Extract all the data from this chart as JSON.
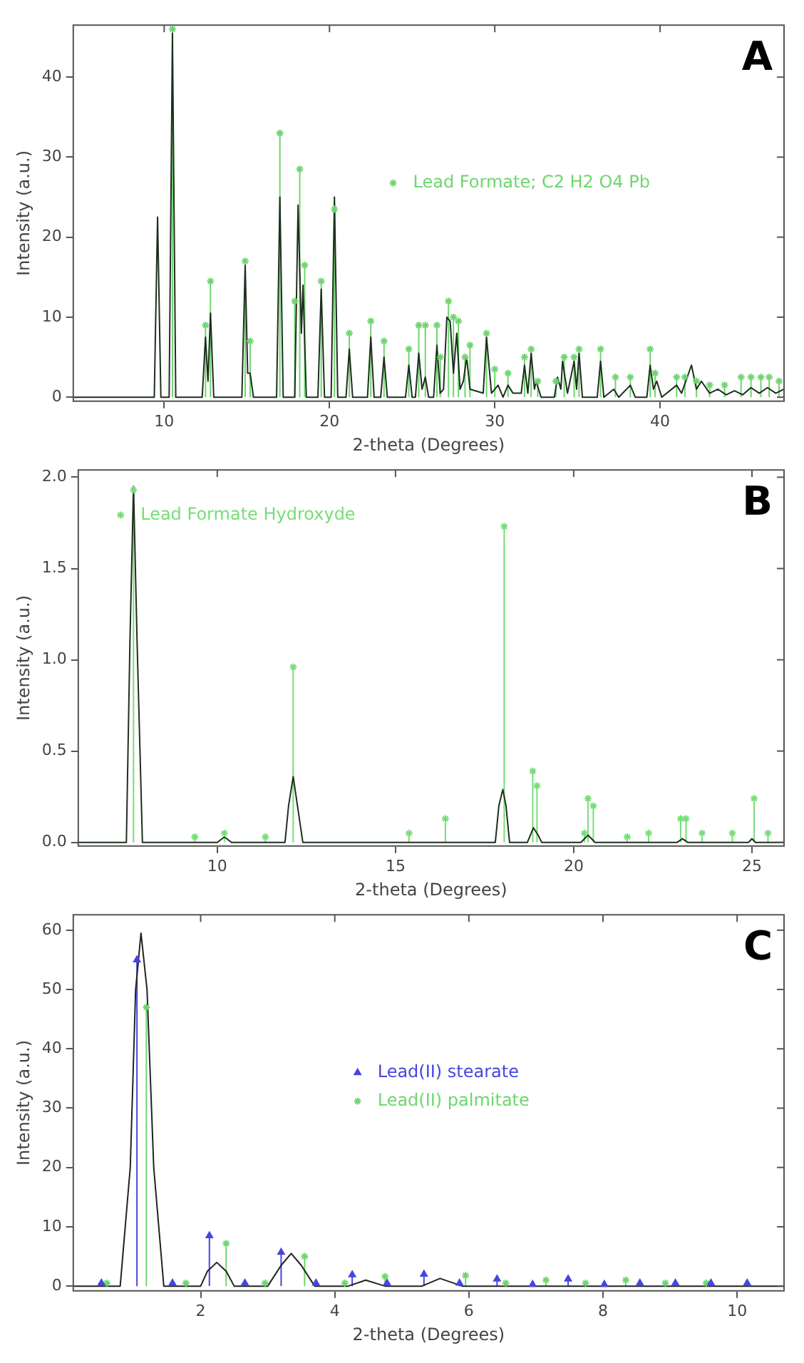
{
  "chart_data": [
    {
      "type": "line",
      "annotations": [
        "A"
      ],
      "xlabel": "2-theta (Degrees)",
      "ylabel": "Intensity (a.u.)",
      "xlim": [
        4.5,
        47.5
      ],
      "ylim": [
        -0.5,
        46.5
      ],
      "xticks": [
        10,
        20,
        30,
        40
      ],
      "yticks": [
        0,
        10,
        20,
        30,
        40
      ],
      "grid": false,
      "legend": "right",
      "series": [
        {
          "type": "line",
          "color": "#1e2e1e",
          "x": [
            4.5,
            9.4,
            9.6,
            9.8,
            10.3,
            10.5,
            10.7,
            12.3,
            12.5,
            12.65,
            12.8,
            13.0,
            14.7,
            14.9,
            15.05,
            15.2,
            15.4,
            16.8,
            17.0,
            17.2,
            17.9,
            18.1,
            18.3,
            18.4,
            18.6,
            19.3,
            19.5,
            19.7,
            20.1,
            20.3,
            20.5,
            21.0,
            21.2,
            21.4,
            22.3,
            22.5,
            22.7,
            23.1,
            23.3,
            23.5,
            24.6,
            24.8,
            25.0,
            25.2,
            25.4,
            25.6,
            25.8,
            26.0,
            26.3,
            26.5,
            26.7,
            26.9,
            27.1,
            27.3,
            27.5,
            27.7,
            27.9,
            28.1,
            28.3,
            28.5,
            29.3,
            29.5,
            29.8,
            30.2,
            30.5,
            30.8,
            31.1,
            31.6,
            31.8,
            32.0,
            32.2,
            32.4,
            32.5,
            32.8,
            33.6,
            33.8,
            34.0,
            34.1,
            34.4,
            34.8,
            34.95,
            35.1,
            35.3,
            36.2,
            36.4,
            36.6,
            37.2,
            37.5,
            38.2,
            38.5,
            39.2,
            39.4,
            39.6,
            39.8,
            40.1,
            41.0,
            41.3,
            41.9,
            42.2,
            42.5,
            43.0,
            43.5,
            44.0,
            44.5,
            45.0,
            45.5,
            46.0,
            46.5,
            47.0,
            47.5
          ],
          "values": [
            0,
            0,
            22.5,
            0,
            0,
            45.5,
            0,
            0,
            7.5,
            2,
            10.5,
            0,
            0,
            16.5,
            3,
            3,
            0,
            0,
            25,
            0,
            0,
            24,
            8,
            14,
            0,
            0,
            13.5,
            0,
            0,
            25,
            0,
            0,
            6,
            0,
            0,
            7.5,
            0,
            0,
            5,
            0,
            0,
            4,
            0,
            0,
            5.5,
            1,
            2.5,
            0,
            0,
            6.5,
            0.5,
            1,
            10,
            9.5,
            3,
            8,
            1,
            2,
            5,
            1,
            0.5,
            7.5,
            0.5,
            1.5,
            0,
            1.5,
            0.5,
            0.5,
            4,
            0.5,
            5.5,
            1,
            2,
            0,
            0,
            2.5,
            1,
            4.5,
            0.5,
            4.5,
            1,
            5.5,
            0,
            0,
            4.5,
            0,
            1,
            0,
            1.5,
            0,
            0,
            4,
            1,
            2,
            0,
            1.5,
            0.5,
            4,
            1,
            2,
            0.5,
            1,
            0.3,
            0.8,
            0.3,
            1.2,
            0.5,
            1.2,
            0.5,
            1
          ]
        },
        {
          "type": "lollipop",
          "name": "Lead Formate; C2 H2 O4 Pb",
          "color": "#6ed66e",
          "marker": "cross",
          "x": [
            10.5,
            12.5,
            12.8,
            14.9,
            15.2,
            17.0,
            17.9,
            18.2,
            18.5,
            19.5,
            20.3,
            21.2,
            22.5,
            23.3,
            24.8,
            25.4,
            25.8,
            26.5,
            26.7,
            27.2,
            27.5,
            27.8,
            28.2,
            28.5,
            29.5,
            30.0,
            30.8,
            31.8,
            32.2,
            32.6,
            33.7,
            34.2,
            34.8,
            35.1,
            36.4,
            37.3,
            38.2,
            39.4,
            39.7,
            41.0,
            41.5,
            42.2,
            43.0,
            43.9,
            44.9,
            45.5,
            46.1,
            46.6,
            47.2
          ],
          "values": [
            46,
            9,
            14.5,
            17,
            7,
            33,
            12,
            28.5,
            16.5,
            14.5,
            23.5,
            8,
            9.5,
            7,
            6,
            9,
            9,
            9,
            5,
            12,
            10,
            9.5,
            5,
            6.5,
            8,
            3.5,
            3,
            5,
            6,
            2,
            2,
            5,
            5,
            6,
            6,
            2.5,
            2.5,
            6,
            3,
            2.5,
            2.5,
            2,
            1.5,
            1.5,
            2.5,
            2.5,
            2.5,
            2.5,
            2
          ]
        }
      ]
    },
    {
      "type": "line",
      "annotations": [
        "B"
      ],
      "xlabel": "2-theta (Degrees)",
      "ylabel": "Intensity (a.u.)",
      "xlim": [
        6.1,
        25.9
      ],
      "ylim": [
        -0.02,
        2.04
      ],
      "xticks": [
        10,
        15,
        20,
        25
      ],
      "yticks": [
        {
          "value": 0,
          "label": "0.0"
        },
        {
          "value": 0.5,
          "label": "0.5"
        },
        {
          "value": 1,
          "label": "1.0"
        },
        {
          "value": 1.5,
          "label": "1.5"
        },
        {
          "value": 2,
          "label": "2.0"
        }
      ],
      "grid": false,
      "legend": "top left",
      "series": [
        {
          "type": "line",
          "color": "#1e2e1e",
          "x": [
            6.1,
            7.45,
            7.55,
            7.65,
            7.75,
            7.9,
            10.0,
            10.2,
            10.4,
            11.9,
            12.0,
            12.13,
            12.25,
            12.4,
            17.8,
            17.9,
            18.01,
            18.1,
            18.2,
            18.7,
            18.87,
            19.0,
            19.1,
            20.2,
            20.4,
            20.6,
            22.9,
            23.05,
            23.2,
            24.9,
            25.0,
            25.1,
            25.9
          ],
          "values": [
            0,
            0,
            1.1,
            1.95,
            1.1,
            0,
            0,
            0.03,
            0,
            0,
            0.2,
            0.36,
            0.2,
            0,
            0,
            0.2,
            0.29,
            0.2,
            0,
            0,
            0.08,
            0.04,
            0,
            0,
            0.04,
            0,
            0,
            0.02,
            0,
            0,
            0.02,
            0,
            0
          ]
        },
        {
          "type": "lollipop",
          "name": "Lead Formate Hydroxyde",
          "color": "#77dd77",
          "marker": "cross",
          "x": [
            7.65,
            9.37,
            10.2,
            11.35,
            12.13,
            15.38,
            16.4,
            18.05,
            18.85,
            18.97,
            20.3,
            20.4,
            20.55,
            21.5,
            22.1,
            23.0,
            23.15,
            23.6,
            24.45,
            25.06,
            25.45
          ],
          "values": [
            1.93,
            0.03,
            0.05,
            0.03,
            0.96,
            0.05,
            0.13,
            1.73,
            0.39,
            0.31,
            0.05,
            0.24,
            0.2,
            0.03,
            0.05,
            0.13,
            0.13,
            0.05,
            0.05,
            0.24,
            0.05
          ]
        }
      ]
    },
    {
      "type": "line",
      "annotations": [
        "C"
      ],
      "xlabel": "2-theta (Degrees)",
      "ylabel": "Intensity (a.u.)",
      "xlim": [
        0.1,
        10.7
      ],
      "ylim": [
        -0.8,
        62.6
      ],
      "xticks": [
        2,
        4,
        6,
        8,
        10
      ],
      "yticks": [
        0,
        10,
        20,
        30,
        40,
        50,
        60
      ],
      "grid": false,
      "legend": "center",
      "series": [
        {
          "type": "line",
          "color": "#222222",
          "x": [
            0.1,
            0.8,
            0.95,
            1.03,
            1.11,
            1.2,
            1.3,
            1.45,
            2.0,
            2.1,
            2.24,
            2.38,
            2.5,
            3.0,
            3.2,
            3.35,
            3.5,
            3.7,
            4.2,
            4.46,
            4.75,
            5.3,
            5.57,
            5.9,
            10.7
          ],
          "values": [
            0,
            0,
            20,
            50,
            59.5,
            50,
            20,
            0,
            0,
            2.5,
            4,
            2.5,
            0,
            0,
            3.5,
            5.5,
            3.5,
            0,
            0,
            1,
            0,
            0,
            1.3,
            0,
            0
          ]
        },
        {
          "type": "lollipop",
          "name": "Lead(II) stearate",
          "color": "#4646e0",
          "marker": "triangle",
          "x": [
            0.52,
            1.05,
            1.58,
            2.13,
            2.66,
            3.2,
            3.72,
            4.26,
            4.78,
            5.33,
            5.86,
            6.42,
            6.95,
            7.48,
            8.02,
            8.55,
            9.08,
            9.61,
            10.15
          ],
          "values": [
            0.5,
            55,
            0.5,
            8.5,
            0.5,
            5.7,
            0.5,
            1.9,
            0.5,
            2,
            0.5,
            1.2,
            0.3,
            1.2,
            0.3,
            0.5,
            0.5,
            0.5,
            0.5
          ]
        },
        {
          "type": "lollipop",
          "name": "Lead(II) palmitate",
          "color": "#6ed66e",
          "marker": "cross",
          "x": [
            0.6,
            1.19,
            1.78,
            2.38,
            2.96,
            3.55,
            4.15,
            4.75,
            5.95,
            6.55,
            7.15,
            7.74,
            8.34,
            8.93,
            9.54
          ],
          "values": [
            0.5,
            47,
            0.5,
            7.2,
            0.5,
            5,
            0.5,
            1.6,
            1.8,
            0.5,
            1,
            0.5,
            1,
            0.5,
            0.5
          ]
        }
      ]
    }
  ]
}
